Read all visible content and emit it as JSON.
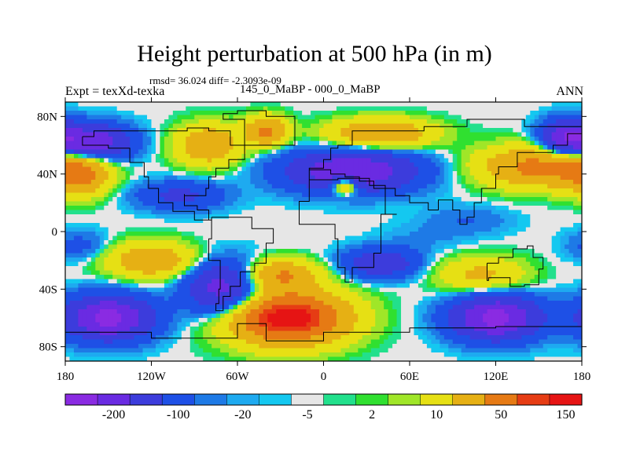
{
  "title": "Height perturbation at 500 hPa (in m)",
  "stats": "rmsd= 36.024 diff= -2.3093e-09",
  "experiment": "Expt = texXd-texka",
  "period": "145_0_MaBP - 000_0_MaBP",
  "season": "ANN",
  "lon_ticks": [
    "180",
    "120W",
    "60W",
    "0",
    "60E",
    "120E",
    "180"
  ],
  "lat_ticks": [
    "80N",
    "40N",
    "0",
    "40S",
    "80S"
  ],
  "colorbar": {
    "colors": [
      "#8a2be2",
      "#6a2be2",
      "#3c3cdc",
      "#1e50e6",
      "#1e7ae6",
      "#1eaaf0",
      "#14c8f0",
      "#e6e6e6",
      "#22e08c",
      "#30e030",
      "#a0e628",
      "#e6e014",
      "#e6b014",
      "#e67a14",
      "#e63c14",
      "#e61414"
    ],
    "labels": [
      "-200",
      "-100",
      "-20",
      "-5",
      "2",
      "10",
      "50",
      "150"
    ]
  },
  "field_levels": [
    {
      "threshold": 180,
      "color": "#e61414"
    },
    {
      "threshold": 150,
      "color": "#e63c14"
    },
    {
      "threshold": 100,
      "color": "#e67a14"
    },
    {
      "threshold": 50,
      "color": "#e6b014"
    },
    {
      "threshold": 20,
      "color": "#e6e014"
    },
    {
      "threshold": 10,
      "color": "#a0e628"
    },
    {
      "threshold": 5,
      "color": "#30e030"
    },
    {
      "threshold": 2,
      "color": "#22e08c"
    },
    {
      "threshold": -2,
      "color": "#e6e6e6"
    },
    {
      "threshold": -5,
      "color": "#14c8f0"
    },
    {
      "threshold": -10,
      "color": "#1eaaf0"
    },
    {
      "threshold": -20,
      "color": "#1e7ae6"
    },
    {
      "threshold": -50,
      "color": "#1e50e6"
    },
    {
      "threshold": -100,
      "color": "#3c3cdc"
    },
    {
      "threshold": -150,
      "color": "#6a2be2"
    },
    {
      "threshold": -1000000000.0,
      "color": "#8a2be2"
    }
  ]
}
